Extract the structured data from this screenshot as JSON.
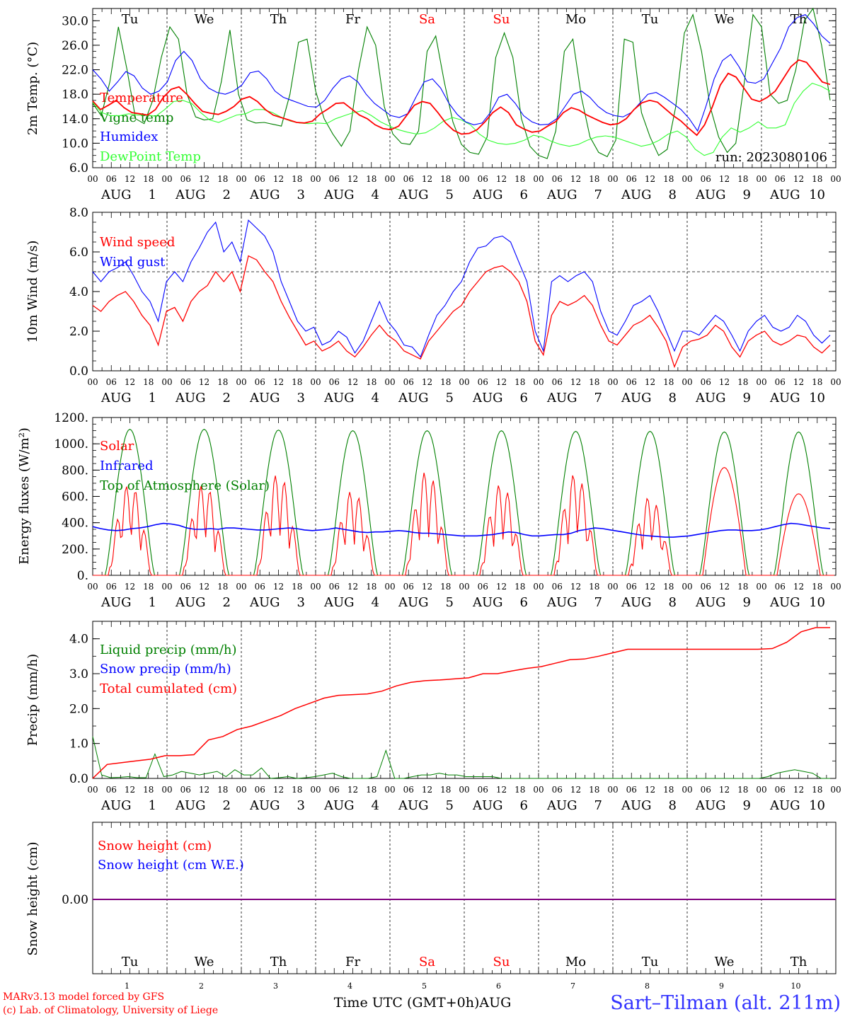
{
  "chart_data": [
    {
      "type": "line",
      "panel": "temperature",
      "ylabel": "2m Temp. (°C)",
      "ylim": [
        6.0,
        32.0
      ],
      "yticks": [
        "6.0",
        "10.0",
        "14.0",
        "18.0",
        "22.0",
        "26.0",
        "30.0"
      ],
      "ytick_values": [
        6,
        10,
        14,
        18,
        22,
        26,
        30
      ],
      "day_names": [
        "Tu",
        "We",
        "Th",
        "Fr",
        "Sa",
        "Su",
        "Mo",
        "Tu",
        "We",
        "Th"
      ],
      "weekend_days": [
        4,
        5
      ],
      "run_label": "run: 2023080106",
      "series": [
        {
          "name": "Temperature",
          "color": "#ff0000",
          "values": [
            16.9,
            15.5,
            16.2,
            17.0,
            15.8,
            15.0,
            14.8,
            14.6,
            15.5,
            17.5,
            18.8,
            19.2,
            18.0,
            16.5,
            15.2,
            14.9,
            14.7,
            15.2,
            16.0,
            17.2,
            17.6,
            16.8,
            15.5,
            14.6,
            14.2,
            13.8,
            13.4,
            13.3,
            13.6,
            14.8,
            15.6,
            16.5,
            16.6,
            15.6,
            14.6,
            14.0,
            13.0,
            12.4,
            12.2,
            12.8,
            14.5,
            16.2,
            16.8,
            16.5,
            15.0,
            13.3,
            12.1,
            11.5,
            11.6,
            12.2,
            13.5,
            15.0,
            15.9,
            15.0,
            13.0,
            12.3,
            11.8,
            12.0,
            12.8,
            13.5,
            15.0,
            15.8,
            15.4,
            14.6,
            14.0,
            13.4,
            13.0,
            13.2,
            14.0,
            15.5,
            16.6,
            17.0,
            16.7,
            15.6,
            14.5,
            13.6,
            12.4,
            11.3,
            13.0,
            16.0,
            19.5,
            21.4,
            20.8,
            19.0,
            17.2,
            16.8,
            17.5,
            18.5,
            20.5,
            22.5,
            23.6,
            23.2,
            21.6,
            20.0,
            19.6
          ]
        },
        {
          "name": "Vigne temp",
          "color": "#008000",
          "values": [
            16.5,
            14.5,
            20.0,
            29.0,
            22.0,
            14.0,
            13.2,
            17.0,
            24.0,
            29.0,
            27.0,
            18.0,
            14.3,
            13.8,
            14.0,
            20.0,
            28.5,
            18.0,
            13.8,
            13.3,
            13.4,
            13.1,
            12.8,
            18.0,
            26.5,
            27.0,
            18.5,
            14.0,
            11.5,
            9.5,
            12.0,
            22.0,
            29.0,
            26.0,
            16.0,
            11.5,
            10.0,
            9.8,
            12.0,
            25.0,
            27.5,
            20.0,
            13.5,
            9.8,
            8.5,
            8.2,
            11.0,
            24.0,
            28.0,
            24.0,
            14.0,
            9.5,
            8.0,
            7.5,
            12.0,
            25.0,
            27.0,
            17.5,
            11.0,
            8.5,
            7.8,
            10.5,
            27.0,
            26.5,
            15.0,
            11.0,
            8.0,
            9.0,
            16.0,
            28.0,
            31.0,
            25.0,
            16.0,
            11.0,
            8.5,
            10.0,
            20.0,
            31.0,
            29.0,
            18.0,
            16.5,
            17.0,
            22.0,
            30.0,
            32.0,
            26.0,
            17.0
          ]
        },
        {
          "name": "Humidex",
          "color": "#0000ff",
          "values": [
            22.0,
            20.5,
            18.5,
            20.0,
            21.7,
            21.0,
            19.0,
            18.0,
            18.5,
            20.0,
            23.5,
            25.0,
            23.5,
            20.5,
            19.0,
            18.3,
            18.0,
            18.5,
            19.5,
            21.5,
            21.8,
            20.5,
            18.5,
            17.5,
            17.0,
            16.5,
            16.0,
            15.9,
            17.0,
            19.0,
            20.5,
            21.0,
            20.0,
            18.0,
            16.5,
            15.5,
            14.5,
            14.2,
            14.8,
            17.5,
            20.0,
            20.5,
            19.0,
            16.5,
            14.7,
            13.5,
            13.0,
            13.3,
            15.0,
            17.5,
            18.0,
            16.5,
            14.5,
            13.5,
            13.0,
            13.1,
            14.0,
            16.0,
            18.0,
            18.5,
            17.5,
            16.0,
            15.0,
            14.5,
            14.3,
            15.0,
            16.5,
            18.0,
            18.3,
            17.5,
            16.5,
            15.5,
            14.0,
            12.0,
            16.0,
            20.5,
            23.5,
            24.5,
            22.5,
            20.0,
            19.8,
            20.5,
            23.0,
            25.5,
            29.0,
            30.5,
            31.0,
            29.5,
            27.5,
            26.3
          ]
        },
        {
          "name": "DewPoint Temp",
          "color": "#33ff33",
          "values": [
            16.7,
            15.0,
            14.5,
            14.5,
            14.8,
            14.6,
            14.6,
            14.4,
            15.5,
            16.8,
            17.0,
            16.5,
            15.0,
            13.8,
            13.4,
            14.0,
            14.6,
            14.8,
            15.5,
            15.5,
            15.0,
            14.2,
            13.6,
            13.3,
            13.2,
            13.3,
            13.2,
            14.0,
            14.5,
            15.0,
            15.3,
            14.5,
            13.5,
            12.8,
            12.2,
            11.8,
            11.5,
            11.7,
            12.5,
            13.6,
            14.2,
            13.8,
            13.0,
            11.5,
            10.5,
            10.0,
            9.8,
            10.0,
            10.5,
            11.3,
            11.0,
            10.3,
            9.8,
            9.5,
            9.8,
            10.5,
            11.0,
            11.2,
            11.0,
            10.5,
            10.0,
            9.5,
            9.8,
            10.5,
            11.5,
            12.0,
            11.0,
            9.0,
            8.0,
            8.5,
            11.0,
            12.5,
            11.8,
            12.5,
            13.5,
            12.5,
            12.5,
            13.0,
            16.5,
            18.5,
            19.8,
            19.3,
            18.5
          ]
        }
      ]
    },
    {
      "type": "line",
      "panel": "wind",
      "ylabel": "10m Wind (m/s)",
      "ylim": [
        0.0,
        8.0
      ],
      "yticks": [
        "0.0",
        "2.0",
        "4.0",
        "6.0",
        "8.0"
      ],
      "ytick_values": [
        0,
        2,
        4,
        6,
        8
      ],
      "reference_line": 5.0,
      "series": [
        {
          "name": "Wind speed",
          "color": "#ff0000",
          "values": [
            3.3,
            3.0,
            3.5,
            3.8,
            4.0,
            3.5,
            2.8,
            2.3,
            1.3,
            3.0,
            3.2,
            2.5,
            3.5,
            4.0,
            4.3,
            5.0,
            4.5,
            5.0,
            4.0,
            5.8,
            5.6,
            5.0,
            4.5,
            3.5,
            2.7,
            2.0,
            1.3,
            1.5,
            1.0,
            1.2,
            1.5,
            1.0,
            0.7,
            1.2,
            1.8,
            2.3,
            1.8,
            1.5,
            1.0,
            0.8,
            0.6,
            1.5,
            2.0,
            2.5,
            3.0,
            3.3,
            4.0,
            4.5,
            5.0,
            5.2,
            5.3,
            5.0,
            4.5,
            3.5,
            1.5,
            0.8,
            2.8,
            3.5,
            3.3,
            3.5,
            3.8,
            3.3,
            2.3,
            1.5,
            1.3,
            1.8,
            2.3,
            2.5,
            2.8,
            2.2,
            1.5,
            0.2,
            1.2,
            1.5,
            1.6,
            1.8,
            2.3,
            2.0,
            1.2,
            0.7,
            1.5,
            1.8,
            2.0,
            1.5,
            1.3,
            1.5,
            1.8,
            1.7,
            1.2,
            0.9,
            1.3
          ]
        },
        {
          "name": "Wind gust",
          "color": "#0000ff",
          "values": [
            5.0,
            4.5,
            5.0,
            5.2,
            5.5,
            4.8,
            4.0,
            3.5,
            2.5,
            4.5,
            5.0,
            4.5,
            5.5,
            6.2,
            7.0,
            7.5,
            6.0,
            6.5,
            5.5,
            7.6,
            7.2,
            6.8,
            6.0,
            4.5,
            3.5,
            2.5,
            2.0,
            2.2,
            1.3,
            1.5,
            2.0,
            1.7,
            0.9,
            1.5,
            2.5,
            3.5,
            2.5,
            2.0,
            1.3,
            1.2,
            0.7,
            1.8,
            2.8,
            3.3,
            4.0,
            4.5,
            5.5,
            6.2,
            6.3,
            6.7,
            6.8,
            6.5,
            5.5,
            4.5,
            2.0,
            1.0,
            4.5,
            4.8,
            4.5,
            4.8,
            5.0,
            4.5,
            3.0,
            2.0,
            1.8,
            2.5,
            3.3,
            3.5,
            3.8,
            3.0,
            2.0,
            1.0,
            2.0,
            2.0,
            1.8,
            2.3,
            2.8,
            2.5,
            1.8,
            1.0,
            2.0,
            2.5,
            2.8,
            2.2,
            2.0,
            2.2,
            2.8,
            2.5,
            1.8,
            1.4,
            1.8
          ]
        }
      ]
    },
    {
      "type": "line",
      "panel": "energy",
      "ylabel": "Energy fluxes (W/m²)",
      "ylim": [
        0,
        1200
      ],
      "yticks": [
        "0.",
        "200.",
        "400.",
        "600.",
        "800.",
        "1000.",
        "1200."
      ],
      "ytick_values": [
        0,
        200,
        400,
        600,
        800,
        1000,
        1200
      ],
      "toa_peaks": [
        1110,
        1110,
        1105,
        1100,
        1100,
        1100,
        1095,
        1095,
        1090,
        1090
      ],
      "solar_peaks": [
        700,
        700,
        780,
        650,
        800,
        700,
        780,
        600,
        820,
        620
      ],
      "series": [
        {
          "name": "Solar",
          "color": "#ff0000"
        },
        {
          "name": "Infrared",
          "color": "#0000ff",
          "values": [
            370,
            355,
            345,
            340,
            345,
            355,
            360,
            370,
            385,
            395,
            390,
            380,
            360,
            350,
            350,
            355,
            350,
            360,
            360,
            355,
            350,
            345,
            345,
            350,
            355,
            360,
            355,
            345,
            340,
            345,
            350,
            360,
            350,
            340,
            330,
            325,
            330,
            330,
            335,
            340,
            335,
            325,
            320,
            320,
            315,
            310,
            305,
            300,
            300,
            300,
            305,
            310,
            320,
            330,
            325,
            310,
            300,
            300,
            305,
            310,
            310,
            320,
            340,
            350,
            360,
            355,
            345,
            335,
            325,
            315,
            305,
            300,
            295,
            290,
            290,
            295,
            300,
            310,
            320,
            330,
            340,
            345,
            345,
            340,
            340,
            345,
            355,
            370,
            385,
            395,
            390,
            380,
            370,
            360,
            355
          ]
        },
        {
          "name": "Top of Atmosphere (Solar)",
          "color": "#008000"
        }
      ]
    },
    {
      "type": "line",
      "panel": "precip",
      "ylabel": "Precip (mm/h)",
      "ylim": [
        0.0,
        4.5
      ],
      "yticks": [
        "0.0",
        "1.0",
        "2.0",
        "3.0",
        "4.0"
      ],
      "ytick_values": [
        0,
        1,
        2,
        3,
        4
      ],
      "series": [
        {
          "name": "Liquid precip (mm/h)",
          "color": "#008000",
          "values": [
            1.2,
            0.1,
            0.02,
            0.03,
            0.05,
            0.02,
            0.02,
            0.7,
            0.05,
            0.1,
            0.2,
            0.15,
            0.1,
            0.15,
            0.2,
            0.05,
            0.25,
            0.1,
            0.1,
            0.3,
            0.0,
            0.02,
            0.05,
            0.0,
            0.02,
            0.05,
            0.1,
            0.15,
            0.05,
            0.0,
            0.0,
            0.0,
            0.05,
            0.8,
            0.0,
            0.0,
            0.05,
            0.1,
            0.1,
            0.15,
            0.1,
            0.1,
            0.05,
            0.05,
            0.05,
            0.05,
            0.0,
            0.0,
            0.0,
            0.0,
            0.0,
            0.0,
            0.0,
            0.0,
            0.0,
            0.0,
            0.0,
            0.0,
            0.0,
            0.0,
            0.0,
            0.0,
            0.0,
            0.0,
            0.0,
            0.0,
            0.0,
            0.0,
            0.0,
            0.0,
            0.0,
            0.0,
            0.0,
            0.0,
            0.0,
            0.0,
            0.05,
            0.15,
            0.2,
            0.25,
            0.2,
            0.15,
            0.0,
            0.0
          ]
        },
        {
          "name": "Snow precip (mm/h)",
          "color": "#0000ff"
        },
        {
          "name": "Total cumulated (cm)",
          "color": "#ff0000",
          "values": [
            0.0,
            0.4,
            0.45,
            0.5,
            0.55,
            0.65,
            0.65,
            0.68,
            1.1,
            1.2,
            1.4,
            1.5,
            1.65,
            1.8,
            2.0,
            2.15,
            2.3,
            2.38,
            2.4,
            2.42,
            2.5,
            2.65,
            2.75,
            2.8,
            2.82,
            2.85,
            2.88,
            3.0,
            3.0,
            3.08,
            3.15,
            3.2,
            3.3,
            3.4,
            3.42,
            3.5,
            3.6,
            3.7,
            3.7,
            3.7,
            3.7,
            3.7,
            3.7,
            3.7,
            3.7,
            3.7,
            3.7,
            3.72,
            3.9,
            4.2,
            4.32,
            4.32
          ]
        }
      ]
    },
    {
      "type": "line",
      "panel": "snow",
      "ylabel": "Snow height (cm)",
      "yticks": [
        "0.00"
      ],
      "ytick_values": [
        0
      ],
      "series": [
        {
          "name": "Snow height (cm)",
          "color": "#ff0000"
        },
        {
          "name": "Snow height (cm W.E.)",
          "color": "#0000ff"
        }
      ],
      "baseline_color": "#7f007f",
      "day_names": [
        "Tu",
        "We",
        "Th",
        "Fr",
        "Sa",
        "Su",
        "Mo",
        "Tu",
        "We",
        "Th"
      ],
      "day_numbers": [
        "1",
        "2",
        "3",
        "4",
        "5",
        "6",
        "7",
        "8",
        "9",
        "10"
      ]
    }
  ],
  "x_axis": {
    "hour_labels": [
      "00",
      "06",
      "12",
      "18"
    ],
    "end_label": "00",
    "month": "AUG",
    "days": [
      "1",
      "2",
      "3",
      "4",
      "5",
      "6",
      "7",
      "8",
      "9",
      "10"
    ],
    "title": "Time UTC (GMT+0h)",
    "bottom_month": "AUG"
  },
  "footer": {
    "credit_line1": "MARv3.13 model forced by GFS",
    "credit_line2": "(c) Lab. of Climatology, University of Liege",
    "station": "Sart–Tilman (alt. 211m)"
  },
  "colors": {
    "weekday": "#000000",
    "weekend": "#ff0000",
    "credit": "#ff0000",
    "station": "#3333ff"
  }
}
